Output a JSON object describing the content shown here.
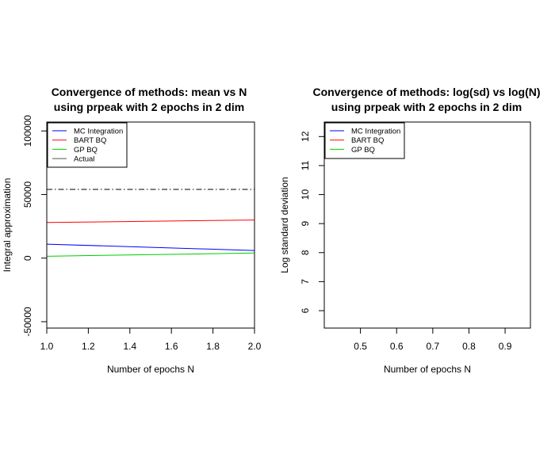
{
  "chart_data": [
    {
      "type": "line",
      "title_line1": "Convergence of methods: mean vs N",
      "title_line2": "using prpeak with 2 epochs in 2 dim",
      "xlabel": "Number of epochs N",
      "ylabel": "Integral approximation",
      "xlim": [
        1.0,
        2.0
      ],
      "ylim": [
        -55000,
        107000
      ],
      "x_ticks": [
        1.0,
        1.2,
        1.4,
        1.6,
        1.8,
        2.0
      ],
      "x_tick_labels": [
        "1.0",
        "1.2",
        "1.4",
        "1.6",
        "1.8",
        "2.0"
      ],
      "y_ticks": [
        -50000,
        0,
        50000,
        100000
      ],
      "y_tick_labels": [
        "-50000",
        "0",
        "50000",
        "100000"
      ],
      "legend_position": "top-left",
      "series": [
        {
          "name": "MC Integration",
          "color": "#0000ff",
          "x": [
            1,
            2
          ],
          "y": [
            11000,
            6000
          ]
        },
        {
          "name": "BART BQ",
          "color": "#ff0000",
          "x": [
            1,
            2
          ],
          "y": [
            28000,
            30000
          ]
        },
        {
          "name": "GP BQ",
          "color": "#00cc00",
          "x": [
            1,
            2
          ],
          "y": [
            1500,
            4000
          ]
        },
        {
          "name": "Actual",
          "color": "#000000",
          "x": [
            1,
            2
          ],
          "y": [
            54000,
            54000
          ],
          "style": "dashdot"
        }
      ]
    },
    {
      "type": "line",
      "title_line1": "Convergence of methods: log(sd) vs log(N)",
      "title_line2": "using prpeak with 2 epochs in 2 dim",
      "xlabel": "Number of epochs N",
      "ylabel": "Log standard deviation",
      "xlim": [
        0.4,
        0.97
      ],
      "ylim": [
        5.4,
        12.5
      ],
      "x_ticks": [
        0.5,
        0.6,
        0.7,
        0.8,
        0.9
      ],
      "x_tick_labels": [
        "0.5",
        "0.6",
        "0.7",
        "0.8",
        "0.9"
      ],
      "y_ticks": [
        6,
        7,
        8,
        9,
        10,
        11,
        12
      ],
      "y_tick_labels": [
        "6",
        "7",
        "8",
        "9",
        "10",
        "11",
        "12"
      ],
      "legend_position": "top-left",
      "series": [
        {
          "name": "MC Integration",
          "color": "#0000ff",
          "x": [],
          "y": []
        },
        {
          "name": "BART BQ",
          "color": "#ff0000",
          "x": [],
          "y": []
        },
        {
          "name": "GP BQ",
          "color": "#00cc00",
          "x": [],
          "y": []
        }
      ]
    }
  ]
}
